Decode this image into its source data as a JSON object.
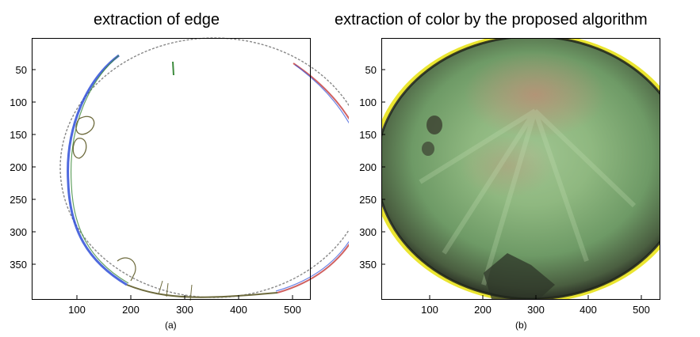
{
  "panels": [
    {
      "title": "extraction of edge",
      "caption": "(a)",
      "x_ticks": [
        "100",
        "200",
        "300",
        "400",
        "500"
      ],
      "y_ticks": [
        "50",
        "100",
        "150",
        "200",
        "250",
        "300",
        "350"
      ]
    },
    {
      "title": "extraction of color by the proposed algorithm",
      "caption": "(b)",
      "x_ticks": [
        "100",
        "200",
        "300",
        "400",
        "500"
      ],
      "y_ticks": [
        "50",
        "100",
        "150",
        "200",
        "250",
        "300",
        "350"
      ]
    }
  ],
  "colors": {
    "edge_blue": "#2f4fd8",
    "edge_olive": "#6d6a3c",
    "edge_green": "#3d8b3d",
    "edge_red": "#c43a3a",
    "fill_green": "#7fae78",
    "fill_pink": "#b98a74",
    "rim_dark": "#2c3226",
    "rim_yellow": "#e8e21a"
  }
}
